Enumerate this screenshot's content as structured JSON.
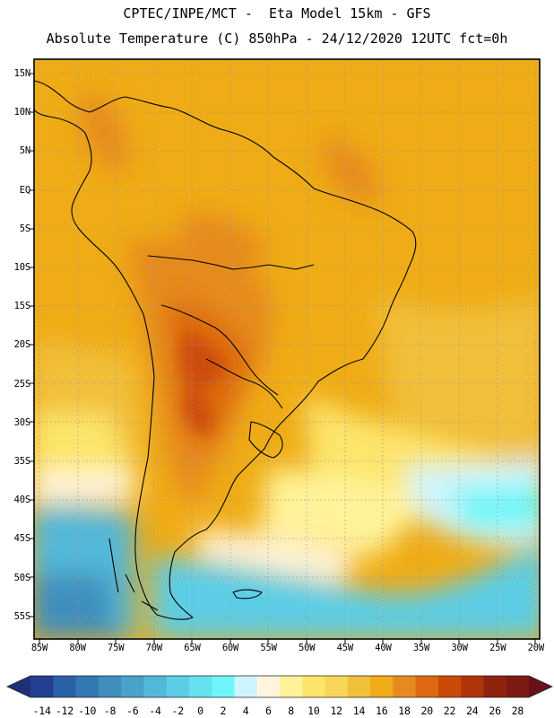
{
  "header": {
    "line1": "CPTEC/INPE/MCT -  Eta Model 15km - GFS",
    "line2": "Absolute Temperature (C) 850hPa - 24/12/2020 12UTC fct=0h"
  },
  "map": {
    "lat_labels": [
      "15N",
      "10N",
      "5N",
      "EQ",
      "5S",
      "10S",
      "15S",
      "20S",
      "25S",
      "30S",
      "35S",
      "40S",
      "45S",
      "50S",
      "55S"
    ],
    "lon_labels": [
      "85W",
      "80W",
      "75W",
      "70W",
      "65W",
      "60W",
      "55W",
      "50W",
      "45W",
      "40W",
      "35W",
      "30W",
      "25W",
      "20W"
    ]
  },
  "colorbar": {
    "labels": [
      "-14",
      "-12",
      "-10",
      "-8",
      "-6",
      "-4",
      "-2",
      "0",
      "2",
      "4",
      "6",
      "8",
      "10",
      "12",
      "14",
      "16",
      "18",
      "20",
      "22",
      "24",
      "26",
      "28"
    ],
    "colors": [
      "#233f8f",
      "#2a60a8",
      "#3378b3",
      "#3f8ebe",
      "#4aa2c8",
      "#52b8d8",
      "#5ccde5",
      "#66e2ee",
      "#6ef6f8",
      "#cff4fd",
      "#fff5dc",
      "#fff39a",
      "#fde56c",
      "#f9d65a",
      "#f2bf3a",
      "#efac16",
      "#e68a1f",
      "#dd6910",
      "#cc4a08",
      "#b0340a",
      "#8f2310",
      "#7b1a12"
    ]
  }
}
